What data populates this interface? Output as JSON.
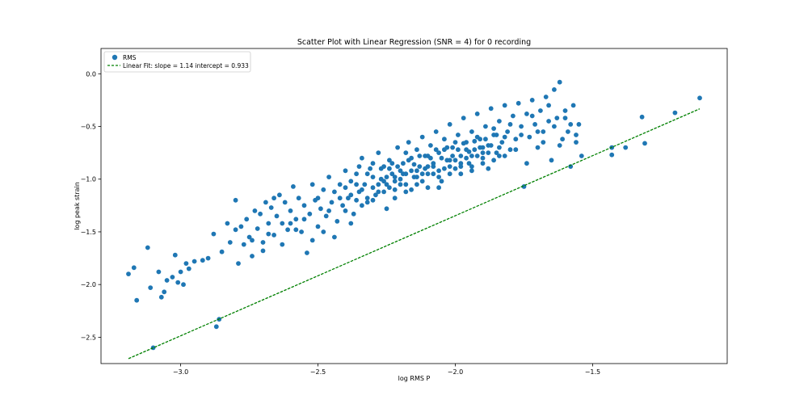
{
  "chart_data": {
    "type": "scatter",
    "title": "Scatter Plot with Linear Regression (SNR = 4) for 0 recording",
    "xlabel": "log RMS P",
    "ylabel": "log peak strain",
    "xlim": [
      -3.29,
      -1.01
    ],
    "ylim": [
      -2.75,
      0.24
    ],
    "xticks": [
      -3.0,
      -2.5,
      -2.0,
      -1.5
    ],
    "xtick_labels": [
      "−3.0",
      "−2.5",
      "−2.0",
      "−1.5"
    ],
    "yticks": [
      0.0,
      -0.5,
      -1.0,
      -1.5,
      -2.0,
      -2.5
    ],
    "ytick_labels": [
      "0.0",
      "−0.5",
      "−1.0",
      "−1.5",
      "−2.0",
      "−2.5"
    ],
    "grid": false,
    "legend_position": "top-left",
    "legend": {
      "scatter_label": "RMS",
      "fit_label": "Linear Fit: slope = 1.14   intercept = 0.933"
    },
    "fit": {
      "slope": 1.14,
      "intercept": 0.933,
      "x_range": [
        -3.19,
        -1.11
      ]
    },
    "colors": {
      "points": "#1f77b4",
      "fit": "#008000"
    },
    "series": [
      {
        "name": "RMS",
        "points": [
          [
            -3.19,
            -1.9
          ],
          [
            -3.17,
            -1.84
          ],
          [
            -3.16,
            -2.15
          ],
          [
            -3.12,
            -1.65
          ],
          [
            -3.11,
            -2.03
          ],
          [
            -3.1,
            -2.6
          ],
          [
            -3.08,
            -1.88
          ],
          [
            -3.07,
            -2.12
          ],
          [
            -3.06,
            -2.07
          ],
          [
            -3.05,
            -1.96
          ],
          [
            -3.03,
            -1.93
          ],
          [
            -3.02,
            -1.72
          ],
          [
            -3.01,
            -1.98
          ],
          [
            -3.0,
            -1.88
          ],
          [
            -2.99,
            -2.0
          ],
          [
            -2.98,
            -1.8
          ],
          [
            -2.97,
            -1.85
          ],
          [
            -2.95,
            -1.78
          ],
          [
            -2.92,
            -1.77
          ],
          [
            -2.9,
            -1.75
          ],
          [
            -2.88,
            -1.52
          ],
          [
            -2.87,
            -2.4
          ],
          [
            -2.86,
            -2.33
          ],
          [
            -2.85,
            -1.69
          ],
          [
            -2.83,
            -1.42
          ],
          [
            -2.82,
            -1.6
          ],
          [
            -2.8,
            -1.48
          ],
          [
            -2.79,
            -1.8
          ],
          [
            -2.78,
            -1.45
          ],
          [
            -2.77,
            -1.62
          ],
          [
            -2.76,
            -1.38
          ],
          [
            -2.75,
            -1.55
          ],
          [
            -2.74,
            -1.73
          ],
          [
            -2.73,
            -1.3
          ],
          [
            -2.72,
            -1.47
          ],
          [
            -2.71,
            -1.33
          ],
          [
            -2.7,
            -1.6
          ],
          [
            -2.69,
            -1.22
          ],
          [
            -2.68,
            -1.42
          ],
          [
            -2.67,
            -1.27
          ],
          [
            -2.66,
            -1.53
          ],
          [
            -2.65,
            -1.35
          ],
          [
            -2.64,
            -1.15
          ],
          [
            -2.63,
            -1.42
          ],
          [
            -2.62,
            -1.22
          ],
          [
            -2.61,
            -1.48
          ],
          [
            -2.6,
            -1.3
          ],
          [
            -2.59,
            -1.07
          ],
          [
            -2.58,
            -1.38
          ],
          [
            -2.57,
            -1.18
          ],
          [
            -2.56,
            -1.5
          ],
          [
            -2.55,
            -1.25
          ],
          [
            -2.54,
            -1.7
          ],
          [
            -2.53,
            -1.33
          ],
          [
            -2.52,
            -1.05
          ],
          [
            -2.51,
            -1.2
          ],
          [
            -2.5,
            -1.45
          ],
          [
            -2.49,
            -1.28
          ],
          [
            -2.48,
            -1.1
          ],
          [
            -2.47,
            -1.35
          ],
          [
            -2.46,
            -0.98
          ],
          [
            -2.45,
            -1.22
          ],
          [
            -2.44,
            -1.12
          ],
          [
            -2.43,
            -1.4
          ],
          [
            -2.42,
            -1.05
          ],
          [
            -2.41,
            -1.25
          ],
          [
            -2.4,
            -0.92
          ],
          [
            -2.39,
            -1.18
          ],
          [
            -2.38,
            -1.02
          ],
          [
            -2.37,
            -1.33
          ],
          [
            -2.36,
            -0.95
          ],
          [
            -2.35,
            -1.12
          ],
          [
            -2.34,
            -0.8
          ],
          [
            -2.33,
            -1.05
          ],
          [
            -2.32,
            -1.22
          ],
          [
            -2.31,
            -0.9
          ],
          [
            -2.3,
            -0.98
          ],
          [
            -2.29,
            -1.15
          ],
          [
            -2.28,
            -0.75
          ],
          [
            -2.27,
            -1.0
          ],
          [
            -2.26,
            -0.88
          ],
          [
            -2.25,
            -1.28
          ],
          [
            -2.24,
            -0.82
          ],
          [
            -2.23,
            -0.95
          ],
          [
            -2.22,
            -1.1
          ],
          [
            -2.21,
            -0.7
          ],
          [
            -2.2,
            -0.92
          ],
          [
            -2.19,
            -0.85
          ],
          [
            -2.18,
            -1.05
          ],
          [
            -2.17,
            -0.65
          ],
          [
            -2.16,
            -0.8
          ],
          [
            -2.15,
            -0.98
          ],
          [
            -2.14,
            -0.72
          ],
          [
            -2.13,
            -0.88
          ],
          [
            -2.12,
            -0.6
          ],
          [
            -2.11,
            -0.78
          ],
          [
            -2.1,
            -0.95
          ],
          [
            -2.09,
            -0.68
          ],
          [
            -2.08,
            -0.85
          ],
          [
            -2.07,
            -0.55
          ],
          [
            -2.06,
            -0.75
          ],
          [
            -2.05,
            -1.02
          ],
          [
            -2.04,
            -0.62
          ],
          [
            -2.03,
            -0.82
          ],
          [
            -2.02,
            -0.48
          ],
          [
            -2.01,
            -0.7
          ],
          [
            -2.0,
            -0.9
          ],
          [
            -1.99,
            -0.58
          ],
          [
            -1.98,
            -0.78
          ],
          [
            -1.97,
            -0.42
          ],
          [
            -1.96,
            -0.65
          ],
          [
            -1.95,
            -0.85
          ],
          [
            -1.94,
            -0.55
          ],
          [
            -1.93,
            -0.72
          ],
          [
            -1.92,
            -0.38
          ],
          [
            -1.91,
            -0.62
          ],
          [
            -1.9,
            -0.8
          ],
          [
            -1.89,
            -0.5
          ],
          [
            -1.88,
            -0.68
          ],
          [
            -1.87,
            -0.33
          ],
          [
            -1.86,
            -0.58
          ],
          [
            -1.85,
            -0.75
          ],
          [
            -1.84,
            -0.45
          ],
          [
            -1.83,
            -0.65
          ],
          [
            -1.82,
            -0.3
          ],
          [
            -1.81,
            -0.55
          ],
          [
            -1.8,
            -0.72
          ],
          [
            -1.79,
            -0.4
          ],
          [
            -1.78,
            -0.62
          ],
          [
            -1.77,
            -0.28
          ],
          [
            -1.76,
            -0.5
          ],
          [
            -1.75,
            -1.07
          ],
          [
            -1.74,
            -0.38
          ],
          [
            -1.73,
            -0.6
          ],
          [
            -1.72,
            -0.25
          ],
          [
            -1.71,
            -0.48
          ],
          [
            -1.7,
            -0.7
          ],
          [
            -1.69,
            -0.35
          ],
          [
            -1.68,
            -0.55
          ],
          [
            -1.67,
            -0.22
          ],
          [
            -1.66,
            -0.45
          ],
          [
            -1.65,
            -0.82
          ],
          [
            -1.64,
            -0.15
          ],
          [
            -1.63,
            -0.42
          ],
          [
            -1.62,
            -0.08
          ],
          [
            -1.61,
            -0.62
          ],
          [
            -1.6,
            -0.35
          ],
          [
            -1.59,
            -0.55
          ],
          [
            -1.58,
            -0.88
          ],
          [
            -1.57,
            -0.3
          ],
          [
            -1.56,
            -0.65
          ],
          [
            -1.55,
            -0.48
          ],
          [
            -1.54,
            -0.78
          ],
          [
            -1.43,
            -0.7
          ],
          [
            -1.43,
            -0.77
          ],
          [
            -1.38,
            -0.7
          ],
          [
            -1.32,
            -0.41
          ],
          [
            -1.31,
            -0.66
          ],
          [
            -1.2,
            -0.37
          ],
          [
            -1.11,
            -0.23
          ],
          [
            -2.8,
            -1.2
          ],
          [
            -2.74,
            -1.58
          ],
          [
            -2.7,
            -1.68
          ],
          [
            -2.68,
            -1.52
          ],
          [
            -2.66,
            -1.18
          ],
          [
            -2.63,
            -1.62
          ],
          [
            -2.6,
            -1.42
          ],
          [
            -2.58,
            -1.48
          ],
          [
            -2.55,
            -1.38
          ],
          [
            -2.52,
            -1.58
          ],
          [
            -2.5,
            -1.18
          ],
          [
            -2.48,
            -1.5
          ],
          [
            -2.46,
            -1.3
          ],
          [
            -2.44,
            -1.55
          ],
          [
            -2.42,
            -1.18
          ],
          [
            -2.4,
            -1.3
          ],
          [
            -2.38,
            -1.42
          ],
          [
            -2.36,
            -1.05
          ],
          [
            -2.34,
            -1.25
          ],
          [
            -2.32,
            -0.95
          ],
          [
            -2.3,
            -1.2
          ],
          [
            -2.28,
            -1.05
          ],
          [
            -2.26,
            -1.12
          ],
          [
            -2.24,
            -0.9
          ],
          [
            -2.22,
            -1.18
          ],
          [
            -2.2,
            -1.0
          ],
          [
            -2.18,
            -0.75
          ],
          [
            -2.16,
            -1.1
          ],
          [
            -2.14,
            -0.92
          ],
          [
            -2.12,
            -1.02
          ],
          [
            -2.1,
            -0.78
          ],
          [
            -2.08,
            -0.95
          ],
          [
            -2.06,
            -1.08
          ],
          [
            -2.04,
            -0.72
          ],
          [
            -2.02,
            -0.88
          ],
          [
            -2.0,
            -0.65
          ],
          [
            -1.98,
            -0.95
          ],
          [
            -1.96,
            -0.72
          ],
          [
            -1.94,
            -0.88
          ],
          [
            -1.92,
            -0.6
          ],
          [
            -1.9,
            -0.7
          ],
          [
            -1.88,
            -0.9
          ],
          [
            -1.86,
            -0.52
          ],
          [
            -1.84,
            -0.78
          ],
          [
            -1.82,
            -0.6
          ],
          [
            -1.8,
            -0.48
          ],
          [
            -1.78,
            -0.72
          ],
          [
            -1.76,
            -0.58
          ],
          [
            -1.74,
            -0.85
          ],
          [
            -1.72,
            -0.4
          ],
          [
            -1.7,
            -0.55
          ],
          [
            -1.68,
            -0.65
          ],
          [
            -1.66,
            -0.3
          ],
          [
            -1.64,
            -0.5
          ],
          [
            -1.62,
            -0.68
          ],
          [
            -1.6,
            -0.42
          ],
          [
            -1.58,
            -0.48
          ],
          [
            -1.56,
            -0.58
          ],
          [
            -2.35,
            -0.88
          ],
          [
            -2.3,
            -0.85
          ],
          [
            -2.27,
            -0.9
          ],
          [
            -2.25,
            -0.98
          ],
          [
            -2.23,
            -0.85
          ],
          [
            -2.21,
            -0.88
          ],
          [
            -2.19,
            -0.95
          ],
          [
            -2.17,
            -0.82
          ],
          [
            -2.15,
            -0.86
          ],
          [
            -2.13,
            -0.78
          ],
          [
            -2.11,
            -0.9
          ],
          [
            -2.09,
            -0.8
          ],
          [
            -2.07,
            -0.72
          ],
          [
            -2.05,
            -0.8
          ],
          [
            -2.03,
            -0.7
          ],
          [
            -2.01,
            -0.78
          ],
          [
            -1.99,
            -0.72
          ],
          [
            -1.97,
            -0.66
          ],
          [
            -1.95,
            -0.74
          ],
          [
            -1.93,
            -0.64
          ],
          [
            -1.91,
            -0.7
          ],
          [
            -1.89,
            -0.62
          ],
          [
            -1.87,
            -0.68
          ],
          [
            -1.85,
            -0.58
          ],
          [
            -2.25,
            -1.05
          ],
          [
            -2.22,
            -1.02
          ],
          [
            -2.18,
            -0.95
          ],
          [
            -2.14,
            -0.98
          ],
          [
            -2.1,
            -0.88
          ],
          [
            -2.06,
            -0.92
          ],
          [
            -2.02,
            -0.82
          ],
          [
            -1.98,
            -0.85
          ],
          [
            -1.94,
            -0.78
          ],
          [
            -1.9,
            -0.75
          ],
          [
            -2.4,
            -1.08
          ],
          [
            -2.38,
            -1.15
          ],
          [
            -2.36,
            -1.2
          ],
          [
            -2.34,
            -1.1
          ],
          [
            -2.32,
            -1.18
          ],
          [
            -2.3,
            -1.08
          ],
          [
            -2.28,
            -1.12
          ],
          [
            -2.26,
            -1.02
          ],
          [
            -2.24,
            -1.08
          ],
          [
            -2.22,
            -0.98
          ],
          [
            -2.2,
            -1.05
          ],
          [
            -2.18,
            -1.12
          ],
          [
            -2.16,
            -0.92
          ],
          [
            -2.14,
            -1.05
          ],
          [
            -2.12,
            -0.95
          ],
          [
            -2.1,
            -1.08
          ],
          [
            -2.08,
            -0.88
          ],
          [
            -2.06,
            -0.98
          ],
          [
            -2.04,
            -0.9
          ],
          [
            -2.02,
            -0.95
          ],
          [
            -2.0,
            -0.82
          ],
          [
            -1.98,
            -0.88
          ],
          [
            -1.96,
            -0.8
          ],
          [
            -1.94,
            -0.92
          ],
          [
            -1.92,
            -0.78
          ],
          [
            -1.9,
            -0.85
          ],
          [
            -1.88,
            -0.75
          ],
          [
            -1.86,
            -0.82
          ],
          [
            -1.84,
            -0.7
          ],
          [
            -1.82,
            -0.78
          ]
        ]
      }
    ]
  }
}
